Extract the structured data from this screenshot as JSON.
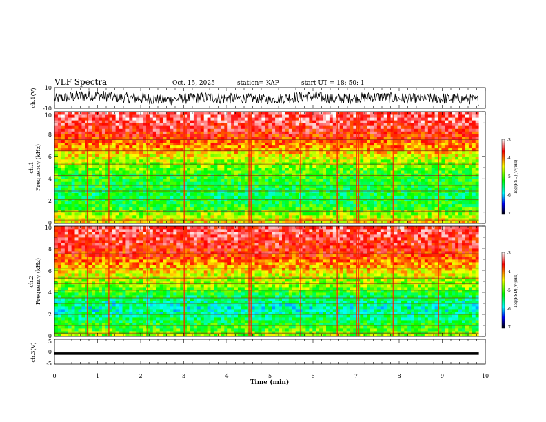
{
  "header": {
    "title": "VLF Spectra",
    "date": "Oct. 15, 2025",
    "station": "station= KAP",
    "start": "start  UT =   18: 50: 1"
  },
  "colorbar": {
    "label": "log(PSD)(V²/Hz)",
    "ticks": [
      "-3",
      "-4",
      "-5",
      "-6",
      "-7"
    ],
    "colors": [
      "#ffffff",
      "#ff0000",
      "#ffff00",
      "#00ff00",
      "#00ffff",
      "#0000ff",
      "#000000"
    ]
  },
  "chart_data": [
    {
      "type": "line",
      "name": "ch1-waveform",
      "ylabel": "ch.1(V)",
      "ylim": [
        -10,
        10
      ],
      "yticks": [
        "10",
        "-10"
      ],
      "xlim": [
        0,
        10
      ],
      "note_values": "min/max envelope of the ch.1 trace over 0-9.85 min",
      "x": [
        0,
        0.5,
        1,
        1.5,
        2,
        2.5,
        3,
        3.5,
        4,
        4.5,
        5,
        5.5,
        6,
        6.5,
        7,
        7.5,
        8,
        8.5,
        9,
        9.5,
        9.85
      ],
      "y_max": [
        4,
        7,
        8,
        5,
        6,
        3,
        4,
        6,
        5,
        4,
        3,
        6,
        7,
        4,
        5,
        6,
        5,
        4,
        5,
        4,
        3
      ],
      "y_min": [
        -6,
        -4,
        -3,
        -5,
        -6,
        -7,
        -6,
        -5,
        -6,
        -5,
        -6,
        -5,
        -4,
        -6,
        -5,
        -4,
        -6,
        -5,
        -6,
        -6,
        -7
      ]
    },
    {
      "type": "heatmap",
      "name": "ch1-spectrogram",
      "ylabel": "ch.1",
      "ylabel2": "Frequency (kHz)",
      "ylim": [
        0,
        10
      ],
      "yticks": [
        "0",
        "2",
        "4",
        "6",
        "8",
        "10"
      ],
      "xlim": [
        0,
        10
      ],
      "data_end_min": 9.85,
      "zlim": [
        -7,
        -3
      ],
      "freq_khz": [
        0.5,
        1.5,
        2.5,
        3.5,
        4.5,
        5.5,
        6.5,
        7.5,
        8.5,
        9.5
      ],
      "log_psd_mean": [
        -4.6,
        -5.2,
        -5.4,
        -5.3,
        -5.1,
        -4.8,
        -4.3,
        -3.9,
        -3.6,
        -3.4
      ],
      "line_khz": [
        0.3,
        1.1,
        2.15,
        2.9,
        3.4,
        4.3,
        5.3,
        6.5,
        7.5
      ],
      "impulse_min": [
        0.75,
        1.25,
        2.15,
        3.0,
        4.5,
        4.55,
        5.7,
        6.55,
        7.0,
        7.05,
        7.85,
        8.9
      ]
    },
    {
      "type": "heatmap",
      "name": "ch2-spectrogram",
      "ylabel": "ch.2",
      "ylabel2": "Frequency (kHz)",
      "ylim": [
        0,
        10
      ],
      "yticks": [
        "0",
        "2",
        "4",
        "6",
        "8",
        "10"
      ],
      "xlim": [
        0,
        10
      ],
      "data_end_min": 9.85,
      "zlim": [
        -7,
        -3
      ],
      "freq_khz": [
        0.5,
        1.5,
        2.5,
        3.5,
        4.5,
        5.5,
        6.5,
        7.5,
        8.5,
        9.5
      ],
      "log_psd_mean": [
        -5.0,
        -5.4,
        -5.7,
        -5.5,
        -4.9,
        -4.6,
        -4.2,
        -3.8,
        -3.6,
        -3.5
      ],
      "line_khz": [
        0.3,
        1.0,
        2.0,
        3.0,
        3.5,
        4.2,
        4.8,
        5.3,
        6.2,
        7.5
      ],
      "impulse_min": [
        0.75,
        1.25,
        2.15,
        3.0,
        4.5,
        4.55,
        5.7,
        6.55,
        7.0,
        7.05,
        7.85,
        8.9
      ]
    },
    {
      "type": "line",
      "name": "ch3-waveform",
      "ylabel": "ch.3(V)",
      "ylim": [
        -5,
        5
      ],
      "yticks": [
        "5",
        "0",
        "-5"
      ],
      "xlim": [
        0,
        10
      ],
      "xlabel": "Time (min)",
      "xticks": [
        "0",
        "1",
        "2",
        "3",
        "4",
        "5",
        "6",
        "7",
        "8",
        "9",
        "10"
      ],
      "x": [
        0,
        9.85
      ],
      "y_max": [
        -0.3,
        -0.3
      ],
      "y_min": [
        -1.3,
        -1.3
      ]
    }
  ]
}
